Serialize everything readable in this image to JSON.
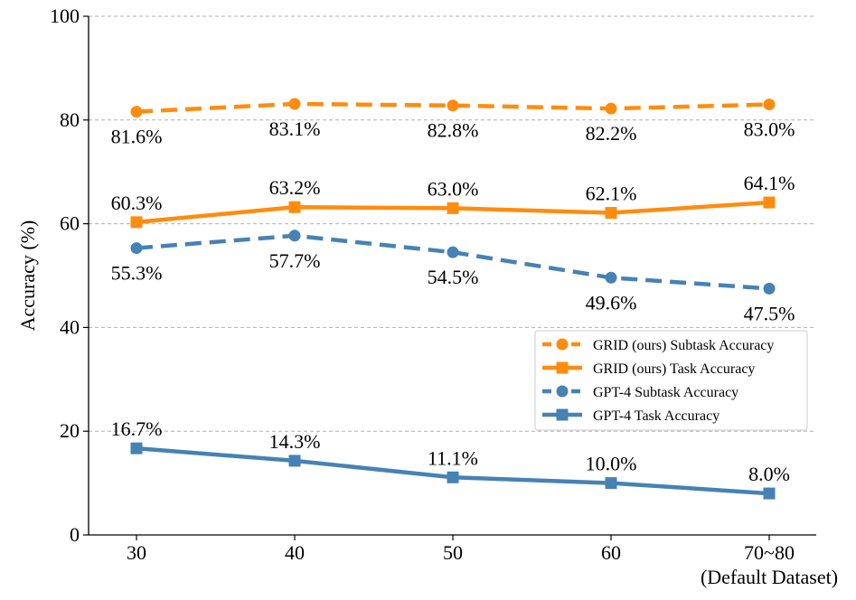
{
  "chart_data": {
    "type": "line",
    "title": "",
    "xlabel": "",
    "ylabel": "Accuracy (%)",
    "ylim": [
      0,
      100
    ],
    "yticks": [
      0,
      20,
      40,
      60,
      80,
      100
    ],
    "grid": "horizontal dashed",
    "legend_position": "center-right",
    "categories": [
      "30",
      "40",
      "50",
      "60",
      "70~80"
    ],
    "category_note": "(Default Dataset)",
    "series": [
      {
        "name": "GRID (ours) Subtask Accuracy",
        "color": "#ff8c0e",
        "line_style": "dashed",
        "marker": "circle",
        "values": [
          81.6,
          83.1,
          82.8,
          82.2,
          83.0
        ],
        "labels": [
          "81.6%",
          "83.1%",
          "82.8%",
          "82.2%",
          "83.0%"
        ],
        "label_side": "below"
      },
      {
        "name": "GRID (ours) Task Accuracy",
        "color": "#ff8c0e",
        "line_style": "solid",
        "marker": "square",
        "values": [
          60.3,
          63.2,
          63.0,
          62.1,
          64.1
        ],
        "labels": [
          "60.3%",
          "63.2%",
          "63.0%",
          "62.1%",
          "64.1%"
        ],
        "label_side": "above"
      },
      {
        "name": "GPT-4 Subtask Accuracy",
        "color": "#4682b4",
        "line_style": "dashed",
        "marker": "circle",
        "values": [
          55.3,
          57.7,
          54.5,
          49.6,
          47.5
        ],
        "labels": [
          "55.3%",
          "57.7%",
          "54.5%",
          "49.6%",
          "47.5%"
        ],
        "label_side": "below"
      },
      {
        "name": "GPT-4 Task Accuracy",
        "color": "#4682b4",
        "line_style": "solid",
        "marker": "square",
        "values": [
          16.7,
          14.3,
          11.1,
          10.0,
          8.0
        ],
        "labels": [
          "16.7%",
          "14.3%",
          "11.1%",
          "10.0%",
          "8.0%"
        ],
        "label_side": "above"
      }
    ]
  }
}
